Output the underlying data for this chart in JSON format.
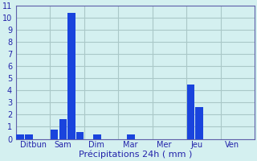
{
  "days": [
    "Ditbun",
    "Sam",
    "Dim",
    "Mar",
    "Mer",
    "Jeu",
    "Ven"
  ],
  "bar_data": [
    [
      0.35,
      0.35,
      0,
      0
    ],
    [
      0.75,
      1.6,
      10.4,
      0.6
    ],
    [
      0,
      0.35,
      0,
      0
    ],
    [
      0,
      0.35,
      0,
      0
    ],
    [
      0,
      0,
      0,
      0
    ],
    [
      4.5,
      2.6,
      0,
      0
    ],
    [
      0,
      0,
      0,
      0
    ]
  ],
  "bar_color": "#1a44dd",
  "background_color": "#d4f0f0",
  "grid_color": "#aac8c8",
  "xlabel": "Précipitations 24h ( mm )",
  "xlabel_fontsize": 8,
  "tick_fontsize": 7,
  "ylim": [
    0,
    11
  ],
  "yticks": [
    0,
    1,
    2,
    3,
    4,
    5,
    6,
    7,
    8,
    9,
    10,
    11
  ],
  "slots_per_day": 4,
  "num_days": 7
}
